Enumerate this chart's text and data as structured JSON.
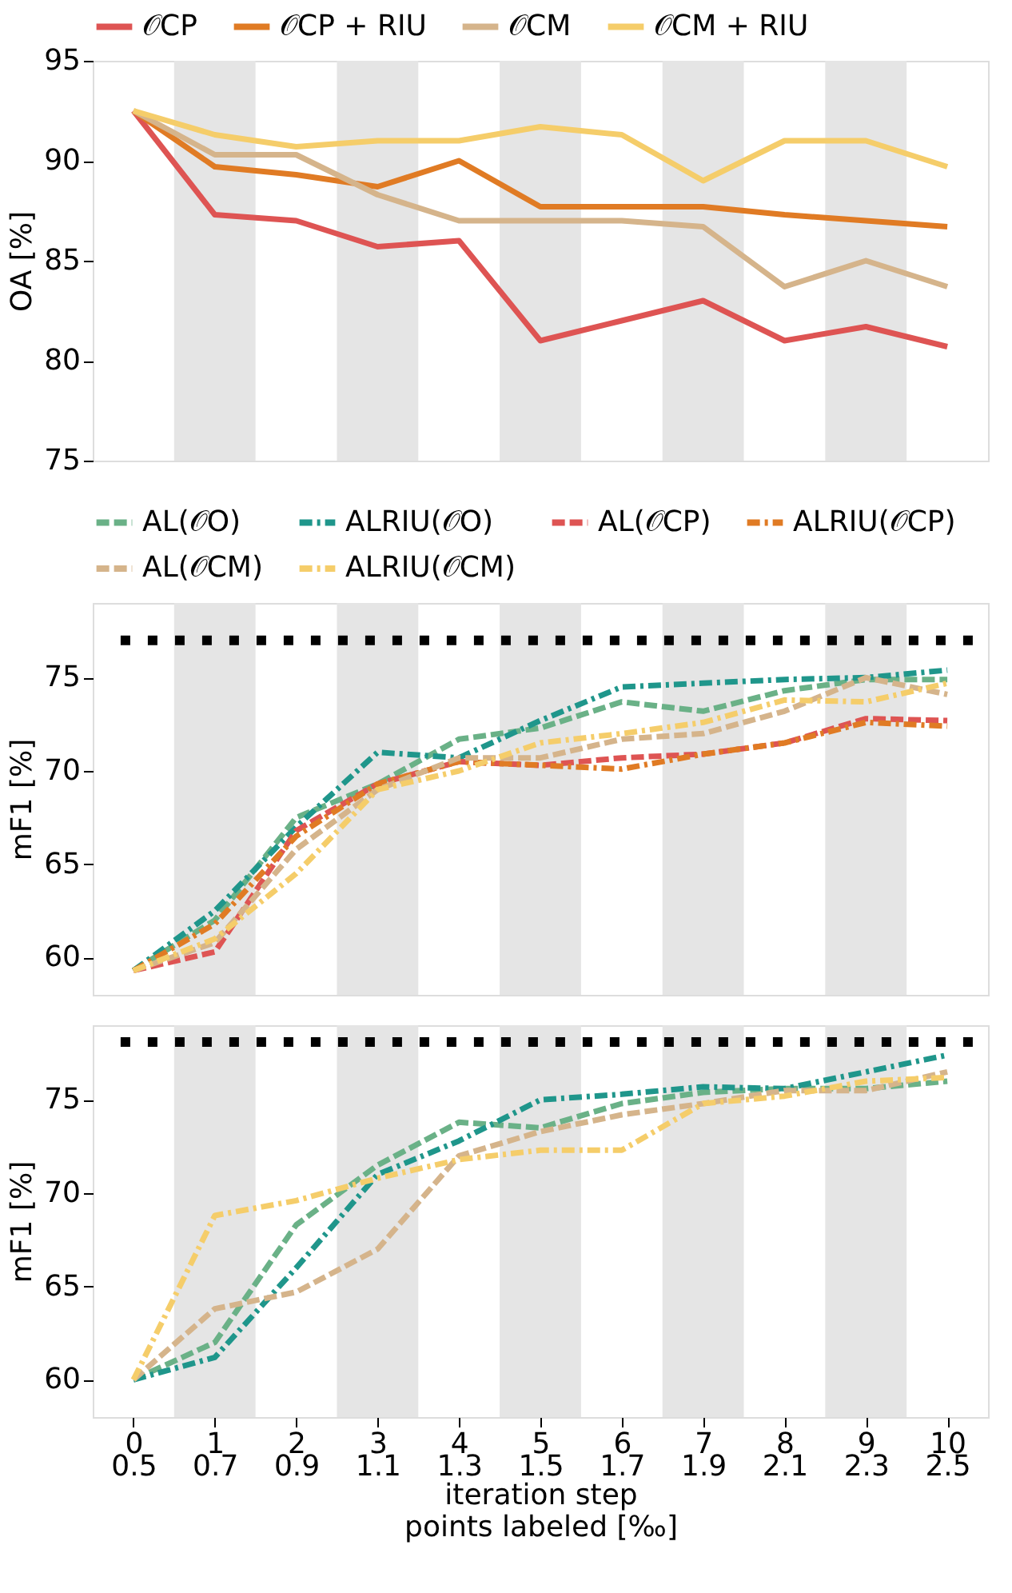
{
  "chart_data": [
    {
      "type": "line",
      "ylabel": "OA [%]",
      "x": [
        0,
        1,
        2,
        3,
        4,
        5,
        6,
        7,
        8,
        9,
        10
      ],
      "xlim": [
        -0.5,
        10.5
      ],
      "ylim": [
        75,
        95
      ],
      "yticks": [
        75,
        80,
        85,
        90,
        95
      ],
      "tick_labels": "y",
      "grid": false,
      "legend": "top",
      "line_style": "solid",
      "marker": "none",
      "series": [
        {
          "name": "𝒪CP",
          "color": "#de5453",
          "values": [
            92.5,
            87.3,
            87.0,
            85.7,
            86.0,
            81.0,
            82.0,
            83.0,
            81.0,
            81.7,
            80.7
          ]
        },
        {
          "name": "𝒪CP + RIU",
          "color": "#e07b24",
          "values": [
            92.5,
            89.7,
            89.3,
            88.7,
            90.0,
            87.7,
            87.7,
            87.7,
            87.3,
            87.0,
            86.7
          ]
        },
        {
          "name": "𝒪CM",
          "color": "#d5b48b",
          "values": [
            92.5,
            90.3,
            90.3,
            88.3,
            87.0,
            87.0,
            87.0,
            86.7,
            83.7,
            85.0,
            83.7
          ]
        },
        {
          "name": "𝒪CM + RIU",
          "color": "#f5cd6a",
          "values": [
            92.5,
            91.3,
            90.7,
            91.0,
            91.0,
            91.7,
            91.3,
            89.0,
            91.0,
            91.0,
            89.7
          ]
        }
      ],
      "bands": [
        {
          "axis": "x",
          "from": 0.5,
          "to": 1.5,
          "color": "#e5e5e5"
        },
        {
          "axis": "x",
          "from": 2.5,
          "to": 3.5,
          "color": "#e5e5e5"
        },
        {
          "axis": "x",
          "from": 4.5,
          "to": 5.5,
          "color": "#e5e5e5"
        },
        {
          "axis": "x",
          "from": 6.5,
          "to": 7.5,
          "color": "#e5e5e5"
        },
        {
          "axis": "x",
          "from": 8.5,
          "to": 9.5,
          "color": "#e5e5e5"
        }
      ]
    },
    {
      "type": "line",
      "ylabel": "mF1 [%]",
      "x": [
        0,
        1,
        2,
        3,
        4,
        5,
        6,
        7,
        8,
        9,
        10
      ],
      "xlim": [
        -0.5,
        10.5
      ],
      "ylim": [
        58,
        79
      ],
      "yticks": [
        60,
        65,
        70,
        75
      ],
      "tick_labels": "y",
      "grid": false,
      "legend": "top",
      "marker": "none",
      "series": [
        {
          "name": "AL(𝒪O)",
          "color": "#6ab187",
          "line_style": "dashed",
          "values": [
            59.3,
            62.0,
            67.5,
            69.3,
            71.7,
            72.3,
            73.7,
            73.2,
            74.3,
            74.9,
            74.9
          ]
        },
        {
          "name": "ALRIU(𝒪O)",
          "color": "#1f968b",
          "line_style": "dashdot",
          "values": [
            59.3,
            62.5,
            67.0,
            71.0,
            70.7,
            72.7,
            74.5,
            74.7,
            74.9,
            75.0,
            75.4
          ]
        },
        {
          "name": "AL(𝒪CP)",
          "color": "#de5453",
          "line_style": "dashed",
          "values": [
            59.3,
            60.3,
            66.8,
            69.3,
            70.5,
            70.3,
            70.7,
            70.9,
            71.5,
            72.8,
            72.7
          ]
        },
        {
          "name": "ALRIU(𝒪CP)",
          "color": "#e07b24",
          "line_style": "dashdot",
          "values": [
            59.3,
            61.8,
            66.5,
            69.3,
            70.5,
            70.3,
            70.1,
            70.9,
            71.5,
            72.6,
            72.4
          ]
        },
        {
          "name": "AL(𝒪CM)",
          "color": "#d5b48b",
          "line_style": "dashed",
          "values": [
            59.3,
            60.8,
            65.8,
            69.0,
            70.7,
            70.7,
            71.7,
            72.0,
            73.2,
            75.0,
            74.1
          ]
        },
        {
          "name": "ALRIU(𝒪CM)",
          "color": "#f5cd6a",
          "line_style": "dashdot",
          "values": [
            59.3,
            61.0,
            64.5,
            69.0,
            70.0,
            71.5,
            72.0,
            72.6,
            73.8,
            73.7,
            74.7
          ]
        }
      ],
      "ref_lines": [
        {
          "axis": "y",
          "value": 77,
          "color": "#000000",
          "line_style": "dotted"
        }
      ],
      "bands": [
        {
          "axis": "x",
          "from": 0.5,
          "to": 1.5,
          "color": "#e5e5e5"
        },
        {
          "axis": "x",
          "from": 2.5,
          "to": 3.5,
          "color": "#e5e5e5"
        },
        {
          "axis": "x",
          "from": 4.5,
          "to": 5.5,
          "color": "#e5e5e5"
        },
        {
          "axis": "x",
          "from": 6.5,
          "to": 7.5,
          "color": "#e5e5e5"
        },
        {
          "axis": "x",
          "from": 8.5,
          "to": 9.5,
          "color": "#e5e5e5"
        }
      ]
    },
    {
      "type": "line",
      "ylabel": "mF1 [%]",
      "xlabel": "iteration step",
      "x2label": "points labeled [‰]",
      "x": [
        0,
        1,
        2,
        3,
        4,
        5,
        6,
        7,
        8,
        9,
        10
      ],
      "xlim": [
        -0.5,
        10.5
      ],
      "ylim": [
        58,
        79
      ],
      "yticks": [
        60,
        65,
        70,
        75
      ],
      "grid": false,
      "marker": "none",
      "xticks": [
        0,
        1,
        2,
        3,
        4,
        5,
        6,
        7,
        8,
        9,
        10
      ],
      "x2lim": [
        0.4,
        2.6
      ],
      "x2ticks": [
        0.5,
        0.7,
        0.9,
        1.1,
        1.3,
        1.5,
        1.7,
        1.9,
        2.1,
        2.3,
        2.5
      ],
      "series": [
        {
          "color": "#6ab187",
          "line_style": "dashed",
          "values": [
            60.0,
            62.0,
            68.3,
            71.5,
            73.8,
            73.5,
            74.8,
            75.4,
            75.6,
            75.6,
            76.0
          ]
        },
        {
          "color": "#1f968b",
          "line_style": "dashdot",
          "values": [
            60.0,
            61.2,
            66.0,
            71.0,
            72.8,
            75.0,
            75.3,
            75.7,
            75.6,
            76.5,
            77.4
          ]
        },
        {
          "color": "#d5b48b",
          "line_style": "dashed",
          "values": [
            60.0,
            63.8,
            64.7,
            67.0,
            72.0,
            73.3,
            74.2,
            74.8,
            75.5,
            75.5,
            76.5
          ]
        },
        {
          "color": "#f5cd6a",
          "line_style": "dashdot",
          "values": [
            60.0,
            68.8,
            69.6,
            70.8,
            71.8,
            72.3,
            72.3,
            74.8,
            75.2,
            76.0,
            76.2
          ]
        }
      ],
      "ref_lines": [
        {
          "axis": "y",
          "value": 78.1,
          "color": "#000000",
          "line_style": "dotted"
        }
      ],
      "bands": [
        {
          "axis": "x",
          "from": 0.5,
          "to": 1.5,
          "color": "#e5e5e5"
        },
        {
          "axis": "x",
          "from": 2.5,
          "to": 3.5,
          "color": "#e5e5e5"
        },
        {
          "axis": "x",
          "from": 4.5,
          "to": 5.5,
          "color": "#e5e5e5"
        },
        {
          "axis": "x",
          "from": 6.5,
          "to": 7.5,
          "color": "#e5e5e5"
        },
        {
          "axis": "x",
          "from": 8.5,
          "to": 9.5,
          "color": "#e5e5e5"
        }
      ]
    }
  ]
}
